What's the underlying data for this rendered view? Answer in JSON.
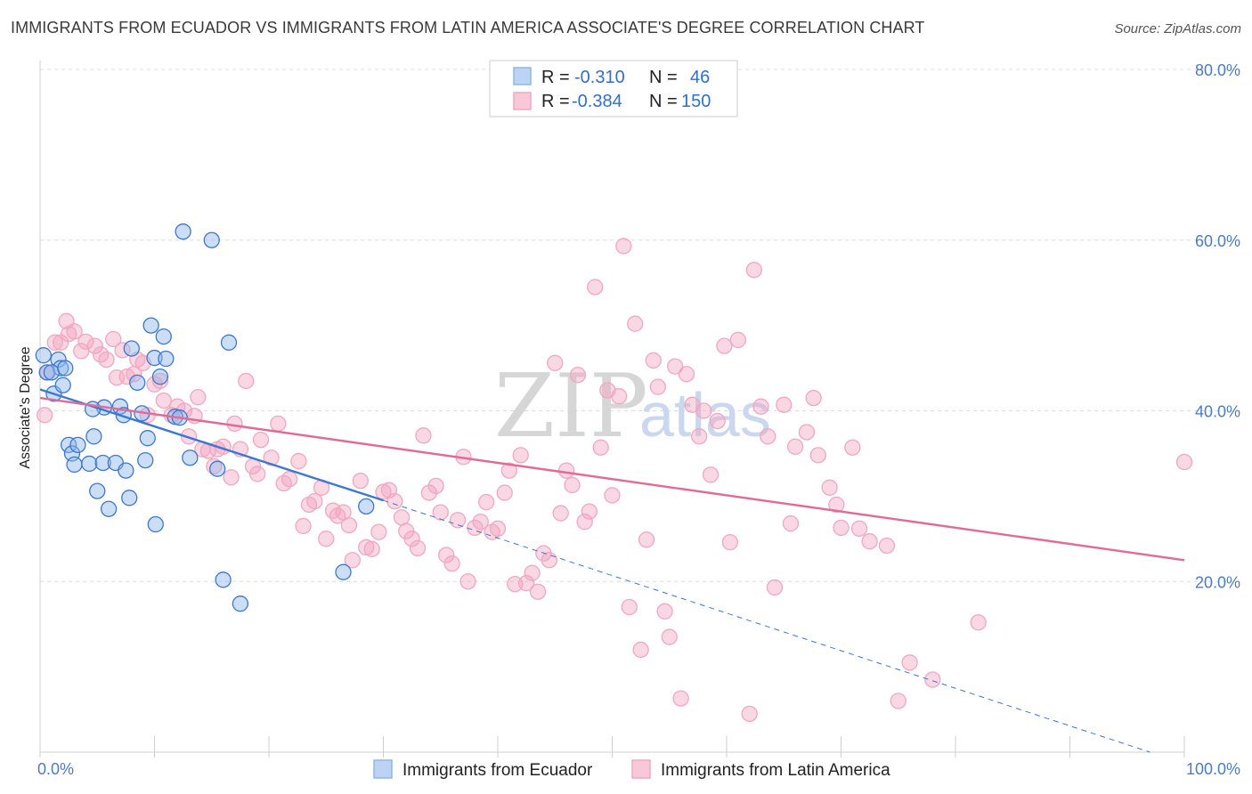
{
  "title": "IMMIGRANTS FROM ECUADOR VS IMMIGRANTS FROM LATIN AMERICA ASSOCIATE'S DEGREE CORRELATION CHART",
  "source": "Source: ZipAtlas.com",
  "watermark": {
    "zip": "ZIP",
    "atlas": "atlas"
  },
  "legend_top": [
    {
      "r_label": "R =",
      "r_value": "-0.310",
      "n_label": "N =",
      "n_value": "46"
    },
    {
      "r_label": "R =",
      "r_value": "-0.384",
      "n_label": "N =",
      "n_value": "150"
    }
  ],
  "chart_data": {
    "type": "scatter",
    "title": "IMMIGRANTS FROM ECUADOR VS IMMIGRANTS FROM LATIN AMERICA ASSOCIATE'S DEGREE CORRELATION CHART",
    "xlabel": "",
    "ylabel": "Associate's Degree",
    "xlim": [
      0,
      100
    ],
    "ylim": [
      0,
      80
    ],
    "x_tick_labels": [
      "0.0%",
      "100.0%"
    ],
    "y_ticks": [
      20,
      40,
      60,
      80
    ],
    "y_tick_labels": [
      "20.0%",
      "40.0%",
      "60.0%",
      "80.0%"
    ],
    "grid": true,
    "legend_position": "top-center",
    "colors": {
      "ecuador": "#8fb6ea",
      "latin": "#f2a7c0",
      "ecuador_line": "#3a78d4",
      "latin_line": "#e26a94"
    },
    "series": [
      {
        "name": "Immigrants from Ecuador",
        "trend": {
          "x0": 0,
          "y0": 42.5,
          "x1": 30,
          "y1": 29.5,
          "dash_to_x": 97,
          "dash_to_y": 0
        },
        "points": [
          [
            0.3,
            46.5
          ],
          [
            0.6,
            44.5
          ],
          [
            1.2,
            42
          ],
          [
            1.6,
            46
          ],
          [
            2,
            43
          ],
          [
            1.8,
            45
          ],
          [
            1,
            44.5
          ],
          [
            2.5,
            36
          ],
          [
            2.8,
            35
          ],
          [
            3.3,
            36
          ],
          [
            3,
            33.7
          ],
          [
            4.3,
            33.8
          ],
          [
            4.7,
            37
          ],
          [
            5,
            30.6
          ],
          [
            5.5,
            33.9
          ],
          [
            5.6,
            40.4
          ],
          [
            6,
            28.5
          ],
          [
            6.6,
            33.9
          ],
          [
            7,
            40.5
          ],
          [
            7.3,
            39.5
          ],
          [
            7.8,
            29.8
          ],
          [
            8,
            47.3
          ],
          [
            8.5,
            43.3
          ],
          [
            8.9,
            39.7
          ],
          [
            9.4,
            36.8
          ],
          [
            9.7,
            50
          ],
          [
            10,
            46.2
          ],
          [
            10.1,
            26.7
          ],
          [
            10.5,
            44
          ],
          [
            10.8,
            48.7
          ],
          [
            11,
            46.1
          ],
          [
            11.8,
            39.3
          ],
          [
            12.5,
            61
          ],
          [
            13.1,
            34.5
          ],
          [
            15,
            60
          ],
          [
            15.5,
            33.2
          ],
          [
            16,
            20.2
          ],
          [
            16.5,
            48
          ],
          [
            17.5,
            17.4
          ],
          [
            26.5,
            21.1
          ],
          [
            28.5,
            28.8
          ],
          [
            4.6,
            40.2
          ],
          [
            7.5,
            33
          ],
          [
            9.2,
            34.2
          ],
          [
            12.2,
            39.2
          ],
          [
            2.2,
            45
          ]
        ]
      },
      {
        "name": "Immigrants from Latin America",
        "trend": {
          "x0": 0,
          "y0": 41.5,
          "x1": 100,
          "y1": 22.5
        },
        "points": [
          [
            0.4,
            39.5
          ],
          [
            0.7,
            44.5
          ],
          [
            1.3,
            48
          ],
          [
            1.8,
            48
          ],
          [
            2.3,
            50.5
          ],
          [
            2.5,
            49
          ],
          [
            3,
            49.3
          ],
          [
            3.6,
            47
          ],
          [
            4,
            48.1
          ],
          [
            4.8,
            47.6
          ],
          [
            5.3,
            46.6
          ],
          [
            5.8,
            46
          ],
          [
            6.4,
            48.4
          ],
          [
            6.7,
            43.9
          ],
          [
            7.2,
            47.1
          ],
          [
            7.6,
            44
          ],
          [
            8.2,
            44.3
          ],
          [
            8.5,
            46
          ],
          [
            9,
            45.6
          ],
          [
            9.4,
            39.5
          ],
          [
            10,
            43.1
          ],
          [
            10.5,
            43.5
          ],
          [
            10.8,
            41.2
          ],
          [
            11.5,
            39.5
          ],
          [
            12,
            40.5
          ],
          [
            12.6,
            40
          ],
          [
            13,
            37
          ],
          [
            13.5,
            39.4
          ],
          [
            13.8,
            41.6
          ],
          [
            14.2,
            35.5
          ],
          [
            14.7,
            35.3
          ],
          [
            15.2,
            33.5
          ],
          [
            15.5,
            35.5
          ],
          [
            16,
            35.8
          ],
          [
            16.7,
            32.2
          ],
          [
            17,
            38.5
          ],
          [
            17.5,
            35.5
          ],
          [
            18,
            43.5
          ],
          [
            18.6,
            33.5
          ],
          [
            19,
            32.6
          ],
          [
            19.3,
            36.6
          ],
          [
            20.2,
            34.5
          ],
          [
            20.8,
            38.5
          ],
          [
            21.3,
            31.5
          ],
          [
            21.8,
            32
          ],
          [
            22.6,
            34.1
          ],
          [
            23,
            26.5
          ],
          [
            23.5,
            29
          ],
          [
            24,
            29.4
          ],
          [
            24.6,
            31
          ],
          [
            25,
            25
          ],
          [
            25.6,
            28.3
          ],
          [
            26,
            27.7
          ],
          [
            26.5,
            28.1
          ],
          [
            27,
            26.6
          ],
          [
            27.3,
            22.5
          ],
          [
            28,
            31.8
          ],
          [
            28.5,
            24
          ],
          [
            29,
            23.8
          ],
          [
            29.6,
            25.8
          ],
          [
            30,
            30.5
          ],
          [
            30.5,
            30.7
          ],
          [
            31,
            29.4
          ],
          [
            31.6,
            27.5
          ],
          [
            32,
            25.9
          ],
          [
            32.5,
            25
          ],
          [
            33,
            23.9
          ],
          [
            33.5,
            37.1
          ],
          [
            34,
            30.4
          ],
          [
            34.6,
            31.2
          ],
          [
            35,
            28.1
          ],
          [
            35.5,
            23.1
          ],
          [
            36,
            22.1
          ],
          [
            36.5,
            27.2
          ],
          [
            37,
            34.6
          ],
          [
            37.4,
            20
          ],
          [
            38,
            26.3
          ],
          [
            38.5,
            27
          ],
          [
            39,
            29.3
          ],
          [
            39.5,
            25.8
          ],
          [
            40,
            26.2
          ],
          [
            40.6,
            30.4
          ],
          [
            41,
            33
          ],
          [
            41.5,
            19.7
          ],
          [
            42,
            34.8
          ],
          [
            42.5,
            19.8
          ],
          [
            43,
            21
          ],
          [
            43.5,
            18.8
          ],
          [
            44,
            23.3
          ],
          [
            44.5,
            22.5
          ],
          [
            45,
            45.6
          ],
          [
            45.5,
            28
          ],
          [
            46,
            33
          ],
          [
            46.5,
            31.3
          ],
          [
            47,
            44.2
          ],
          [
            47.6,
            27
          ],
          [
            48,
            28.2
          ],
          [
            48.5,
            54.5
          ],
          [
            49,
            35.7
          ],
          [
            49.6,
            42.4
          ],
          [
            50,
            30.1
          ],
          [
            50.6,
            41.7
          ],
          [
            51,
            59.3
          ],
          [
            51.5,
            17
          ],
          [
            52,
            50.2
          ],
          [
            52.5,
            12
          ],
          [
            53,
            24.9
          ],
          [
            53.6,
            45.9
          ],
          [
            54,
            42.8
          ],
          [
            54.6,
            16.5
          ],
          [
            55,
            13.5
          ],
          [
            55.5,
            45.2
          ],
          [
            56,
            6.3
          ],
          [
            56.5,
            44.3
          ],
          [
            57,
            40.7
          ],
          [
            57.6,
            37
          ],
          [
            58,
            40
          ],
          [
            58.6,
            32.5
          ],
          [
            59.2,
            38.8
          ],
          [
            59.8,
            47.6
          ],
          [
            60.3,
            24.6
          ],
          [
            61,
            48.3
          ],
          [
            62,
            4.5
          ],
          [
            62.4,
            56.5
          ],
          [
            63,
            40.5
          ],
          [
            63.6,
            37
          ],
          [
            64.2,
            19.3
          ],
          [
            65,
            40.7
          ],
          [
            65.6,
            26.8
          ],
          [
            66,
            35.8
          ],
          [
            67,
            37.5
          ],
          [
            67.6,
            41.5
          ],
          [
            68,
            34.8
          ],
          [
            69,
            31
          ],
          [
            69.6,
            29
          ],
          [
            70,
            26.3
          ],
          [
            71,
            35.7
          ],
          [
            71.6,
            26.2
          ],
          [
            72.5,
            24.7
          ],
          [
            74,
            24.2
          ],
          [
            75,
            6
          ],
          [
            76,
            10.5
          ],
          [
            78,
            8.5
          ],
          [
            82,
            15.2
          ],
          [
            100,
            34
          ]
        ]
      }
    ]
  },
  "bottom_legend": [
    "Immigrants from Ecuador",
    "Immigrants from Latin America"
  ]
}
